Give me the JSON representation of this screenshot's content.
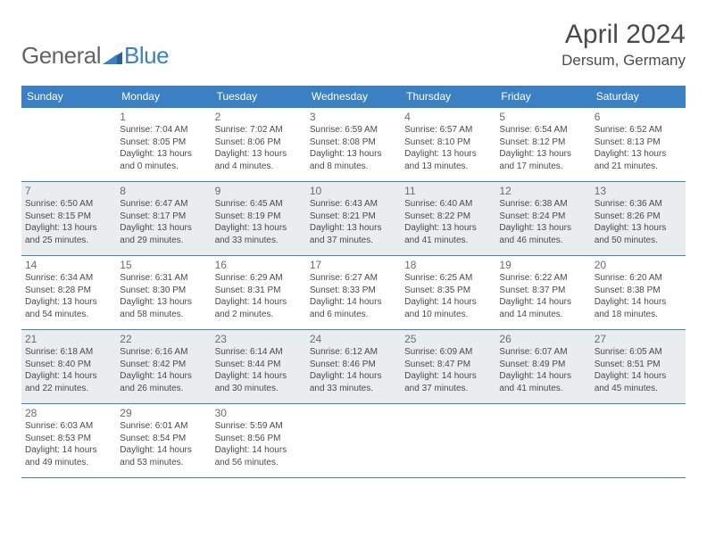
{
  "brand": {
    "part1": "General",
    "part2": "Blue"
  },
  "title": "April 2024",
  "location": "Dersum, Germany",
  "colors": {
    "header_bg": "#3b80c2",
    "header_text": "#ffffff",
    "shaded_bg": "#e9edf0",
    "cell_bg": "#ffffff",
    "border": "#3b80c2",
    "title_color": "#4a4a4a",
    "body_text": "#4a4a4a",
    "daynum_color": "#6b6b6b",
    "logo_gray": "#646464",
    "logo_blue": "#3b80c2"
  },
  "typography": {
    "title_fontsize": 30,
    "location_fontsize": 17,
    "header_fontsize": 12,
    "daynum_fontsize": 12,
    "body_fontsize": 10
  },
  "day_headers": [
    "Sunday",
    "Monday",
    "Tuesday",
    "Wednesday",
    "Thursday",
    "Friday",
    "Saturday"
  ],
  "weeks": [
    {
      "shaded": false,
      "days": [
        {
          "num": "",
          "lines": [
            "",
            "",
            "",
            ""
          ]
        },
        {
          "num": "1",
          "lines": [
            "Sunrise: 7:04 AM",
            "Sunset: 8:05 PM",
            "Daylight: 13 hours",
            "and 0 minutes."
          ]
        },
        {
          "num": "2",
          "lines": [
            "Sunrise: 7:02 AM",
            "Sunset: 8:06 PM",
            "Daylight: 13 hours",
            "and 4 minutes."
          ]
        },
        {
          "num": "3",
          "lines": [
            "Sunrise: 6:59 AM",
            "Sunset: 8:08 PM",
            "Daylight: 13 hours",
            "and 8 minutes."
          ]
        },
        {
          "num": "4",
          "lines": [
            "Sunrise: 6:57 AM",
            "Sunset: 8:10 PM",
            "Daylight: 13 hours",
            "and 13 minutes."
          ]
        },
        {
          "num": "5",
          "lines": [
            "Sunrise: 6:54 AM",
            "Sunset: 8:12 PM",
            "Daylight: 13 hours",
            "and 17 minutes."
          ]
        },
        {
          "num": "6",
          "lines": [
            "Sunrise: 6:52 AM",
            "Sunset: 8:13 PM",
            "Daylight: 13 hours",
            "and 21 minutes."
          ]
        }
      ]
    },
    {
      "shaded": true,
      "days": [
        {
          "num": "7",
          "lines": [
            "Sunrise: 6:50 AM",
            "Sunset: 8:15 PM",
            "Daylight: 13 hours",
            "and 25 minutes."
          ]
        },
        {
          "num": "8",
          "lines": [
            "Sunrise: 6:47 AM",
            "Sunset: 8:17 PM",
            "Daylight: 13 hours",
            "and 29 minutes."
          ]
        },
        {
          "num": "9",
          "lines": [
            "Sunrise: 6:45 AM",
            "Sunset: 8:19 PM",
            "Daylight: 13 hours",
            "and 33 minutes."
          ]
        },
        {
          "num": "10",
          "lines": [
            "Sunrise: 6:43 AM",
            "Sunset: 8:21 PM",
            "Daylight: 13 hours",
            "and 37 minutes."
          ]
        },
        {
          "num": "11",
          "lines": [
            "Sunrise: 6:40 AM",
            "Sunset: 8:22 PM",
            "Daylight: 13 hours",
            "and 41 minutes."
          ]
        },
        {
          "num": "12",
          "lines": [
            "Sunrise: 6:38 AM",
            "Sunset: 8:24 PM",
            "Daylight: 13 hours",
            "and 46 minutes."
          ]
        },
        {
          "num": "13",
          "lines": [
            "Sunrise: 6:36 AM",
            "Sunset: 8:26 PM",
            "Daylight: 13 hours",
            "and 50 minutes."
          ]
        }
      ]
    },
    {
      "shaded": false,
      "days": [
        {
          "num": "14",
          "lines": [
            "Sunrise: 6:34 AM",
            "Sunset: 8:28 PM",
            "Daylight: 13 hours",
            "and 54 minutes."
          ]
        },
        {
          "num": "15",
          "lines": [
            "Sunrise: 6:31 AM",
            "Sunset: 8:30 PM",
            "Daylight: 13 hours",
            "and 58 minutes."
          ]
        },
        {
          "num": "16",
          "lines": [
            "Sunrise: 6:29 AM",
            "Sunset: 8:31 PM",
            "Daylight: 14 hours",
            "and 2 minutes."
          ]
        },
        {
          "num": "17",
          "lines": [
            "Sunrise: 6:27 AM",
            "Sunset: 8:33 PM",
            "Daylight: 14 hours",
            "and 6 minutes."
          ]
        },
        {
          "num": "18",
          "lines": [
            "Sunrise: 6:25 AM",
            "Sunset: 8:35 PM",
            "Daylight: 14 hours",
            "and 10 minutes."
          ]
        },
        {
          "num": "19",
          "lines": [
            "Sunrise: 6:22 AM",
            "Sunset: 8:37 PM",
            "Daylight: 14 hours",
            "and 14 minutes."
          ]
        },
        {
          "num": "20",
          "lines": [
            "Sunrise: 6:20 AM",
            "Sunset: 8:38 PM",
            "Daylight: 14 hours",
            "and 18 minutes."
          ]
        }
      ]
    },
    {
      "shaded": true,
      "days": [
        {
          "num": "21",
          "lines": [
            "Sunrise: 6:18 AM",
            "Sunset: 8:40 PM",
            "Daylight: 14 hours",
            "and 22 minutes."
          ]
        },
        {
          "num": "22",
          "lines": [
            "Sunrise: 6:16 AM",
            "Sunset: 8:42 PM",
            "Daylight: 14 hours",
            "and 26 minutes."
          ]
        },
        {
          "num": "23",
          "lines": [
            "Sunrise: 6:14 AM",
            "Sunset: 8:44 PM",
            "Daylight: 14 hours",
            "and 30 minutes."
          ]
        },
        {
          "num": "24",
          "lines": [
            "Sunrise: 6:12 AM",
            "Sunset: 8:46 PM",
            "Daylight: 14 hours",
            "and 33 minutes."
          ]
        },
        {
          "num": "25",
          "lines": [
            "Sunrise: 6:09 AM",
            "Sunset: 8:47 PM",
            "Daylight: 14 hours",
            "and 37 minutes."
          ]
        },
        {
          "num": "26",
          "lines": [
            "Sunrise: 6:07 AM",
            "Sunset: 8:49 PM",
            "Daylight: 14 hours",
            "and 41 minutes."
          ]
        },
        {
          "num": "27",
          "lines": [
            "Sunrise: 6:05 AM",
            "Sunset: 8:51 PM",
            "Daylight: 14 hours",
            "and 45 minutes."
          ]
        }
      ]
    },
    {
      "shaded": false,
      "days": [
        {
          "num": "28",
          "lines": [
            "Sunrise: 6:03 AM",
            "Sunset: 8:53 PM",
            "Daylight: 14 hours",
            "and 49 minutes."
          ]
        },
        {
          "num": "29",
          "lines": [
            "Sunrise: 6:01 AM",
            "Sunset: 8:54 PM",
            "Daylight: 14 hours",
            "and 53 minutes."
          ]
        },
        {
          "num": "30",
          "lines": [
            "Sunrise: 5:59 AM",
            "Sunset: 8:56 PM",
            "Daylight: 14 hours",
            "and 56 minutes."
          ]
        },
        {
          "num": "",
          "lines": [
            "",
            "",
            "",
            ""
          ]
        },
        {
          "num": "",
          "lines": [
            "",
            "",
            "",
            ""
          ]
        },
        {
          "num": "",
          "lines": [
            "",
            "",
            "",
            ""
          ]
        },
        {
          "num": "",
          "lines": [
            "",
            "",
            "",
            ""
          ]
        }
      ]
    }
  ]
}
